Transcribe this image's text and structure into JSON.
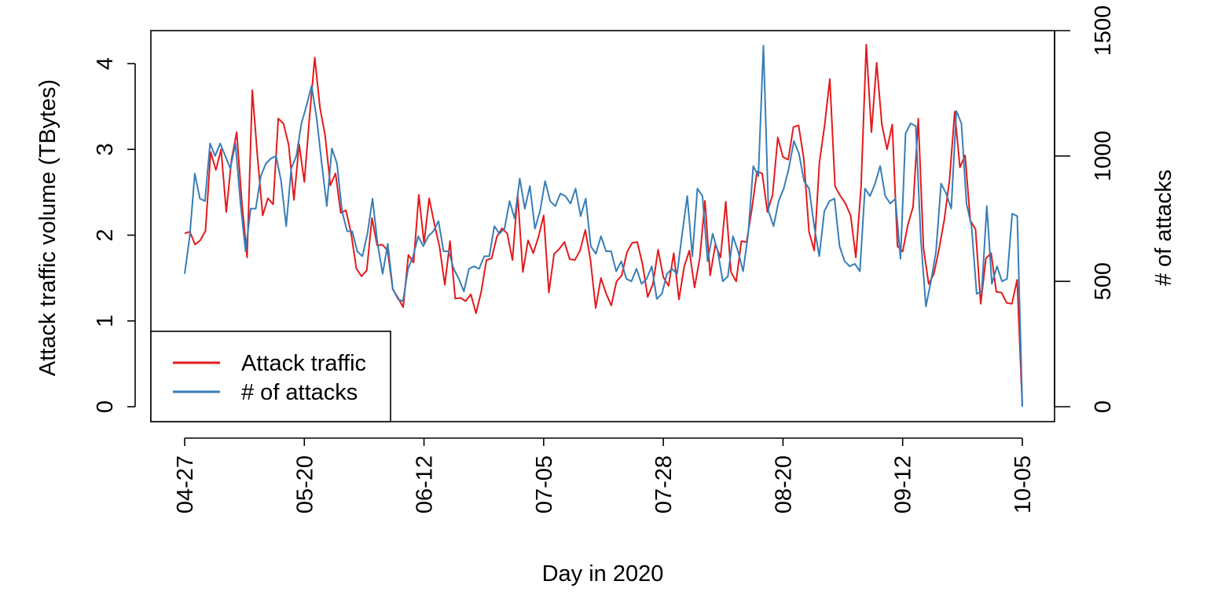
{
  "chart_data": {
    "type": "line",
    "title": "",
    "xlabel": "Day in 2020",
    "ylabel_left": "Attack traffic volume (TBytes)",
    "ylabel_right": "# of attacks",
    "x_range": [
      "04-27",
      "10-05"
    ],
    "x_ticks": [
      "04-27",
      "05-20",
      "06-12",
      "07-05",
      "07-28",
      "08-20",
      "09-12",
      "10-05"
    ],
    "ylim_left": [
      0,
      4.4
    ],
    "yticks_left": [
      "0",
      "1",
      "2",
      "3",
      "4"
    ],
    "ylim_right": [
      0,
      1500
    ],
    "yticks_right": [
      "0",
      "500",
      "1000",
      "1500"
    ],
    "legend_position": "bottom-left",
    "series": [
      {
        "name": "Attack traffic",
        "axis": "left",
        "color": "#e41a1c",
        "values": [
          2.02,
          2.04,
          1.89,
          1.94,
          2.05,
          2.97,
          2.76,
          3.0,
          2.27,
          2.88,
          3.2,
          2.38,
          1.74,
          3.69,
          2.91,
          2.23,
          2.43,
          2.36,
          3.36,
          3.3,
          3.05,
          2.41,
          3.06,
          2.62,
          3.38,
          4.07,
          3.49,
          3.16,
          2.58,
          2.72,
          2.26,
          2.29,
          2.02,
          1.61,
          1.52,
          1.59,
          2.2,
          1.88,
          1.89,
          1.82,
          1.37,
          1.27,
          1.16,
          1.77,
          1.68,
          2.47,
          1.91,
          2.43,
          2.13,
          1.86,
          1.42,
          1.93,
          1.26,
          1.27,
          1.23,
          1.31,
          1.09,
          1.34,
          1.71,
          1.73,
          1.98,
          2.08,
          2.02,
          1.71,
          2.47,
          1.57,
          1.94,
          1.79,
          1.98,
          2.23,
          1.33,
          1.78,
          1.84,
          1.92,
          1.72,
          1.71,
          1.82,
          2.06,
          1.71,
          1.15,
          1.5,
          1.32,
          1.18,
          1.46,
          1.53,
          1.8,
          1.91,
          1.92,
          1.66,
          1.28,
          1.43,
          1.83,
          1.51,
          1.41,
          1.79,
          1.25,
          1.63,
          1.82,
          1.39,
          1.73,
          2.4,
          1.53,
          1.89,
          1.74,
          2.39,
          1.57,
          1.46,
          1.93,
          1.92,
          2.3,
          2.74,
          2.72,
          2.27,
          2.47,
          3.14,
          2.91,
          2.88,
          3.26,
          3.28,
          2.89,
          2.04,
          1.82,
          2.85,
          3.28,
          3.82,
          2.57,
          2.46,
          2.37,
          2.23,
          1.74,
          2.56,
          4.22,
          3.2,
          4.01,
          3.29,
          3.0,
          3.29,
          1.87,
          1.81,
          2.12,
          2.33,
          3.36,
          1.85,
          1.43,
          1.55,
          1.84,
          2.18,
          2.64,
          3.44,
          2.79,
          2.93,
          2.17,
          2.07,
          1.2,
          1.73,
          1.79,
          1.34,
          1.33,
          1.21,
          1.2,
          1.48,
          0.0
        ]
      },
      {
        "name": "# of attacks",
        "axis": "right",
        "color": "#377eb8",
        "values": [
          530,
          680,
          930,
          830,
          820,
          1050,
          1000,
          1050,
          1000,
          950,
          1050,
          810,
          620,
          790,
          790,
          920,
          970,
          990,
          1000,
          900,
          720,
          950,
          1000,
          1130,
          1200,
          1280,
          1150,
          970,
          800,
          1030,
          970,
          780,
          700,
          700,
          620,
          600,
          690,
          830,
          650,
          530,
          650,
          470,
          430,
          420,
          550,
          600,
          680,
          640,
          680,
          700,
          740,
          620,
          620,
          550,
          510,
          460,
          550,
          560,
          550,
          600,
          600,
          720,
          690,
          710,
          820,
          750,
          910,
          790,
          880,
          710,
          780,
          900,
          820,
          800,
          850,
          840,
          810,
          870,
          760,
          830,
          640,
          610,
          680,
          620,
          620,
          540,
          580,
          510,
          500,
          550,
          490,
          510,
          560,
          430,
          450,
          530,
          550,
          530,
          690,
          840,
          600,
          870,
          840,
          580,
          690,
          620,
          500,
          520,
          680,
          620,
          540,
          690,
          960,
          920,
          1440,
          780,
          720,
          820,
          870,
          950,
          1060,
          1010,
          900,
          870,
          720,
          600,
          780,
          820,
          830,
          640,
          580,
          560,
          570,
          540,
          870,
          840,
          890,
          960,
          840,
          810,
          830,
          590,
          1090,
          1130,
          1120,
          670,
          400,
          500,
          620,
          890,
          850,
          790,
          1180,
          1130,
          810,
          720,
          450,
          460,
          800,
          490,
          560,
          500,
          510,
          770,
          760,
          0
        ]
      }
    ]
  }
}
